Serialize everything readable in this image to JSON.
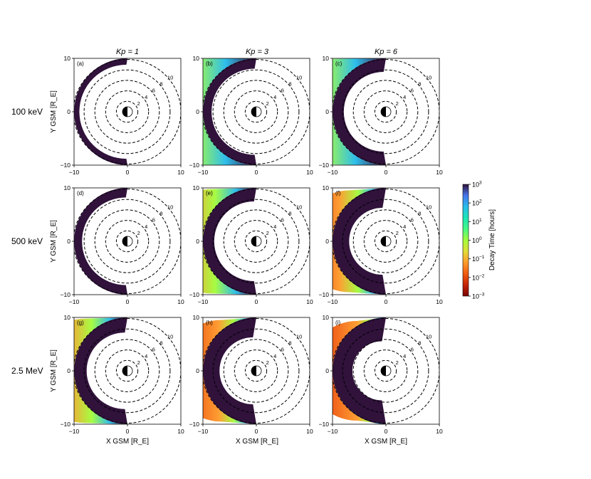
{
  "figure": {
    "column_titles": [
      "Kp = 1",
      "Kp = 3",
      "Kp = 6"
    ],
    "row_labels": [
      "100 keV",
      "500 keV",
      "2.5 MeV"
    ],
    "ylabel": "Y GSM [R_E]",
    "xlabel": "X GSM [R_E]",
    "panel_letters": [
      "(a)",
      "(b)",
      "(c)",
      "(d)",
      "(e)",
      "(f)",
      "(g)",
      "(h)",
      "(i)"
    ],
    "tick_labels": {
      "min": "−10",
      "zero": "0",
      "max": "10"
    },
    "colors": {
      "decay_max": "#30123b",
      "decay_mid": "#28bceb",
      "decay_fast": "#7a0403",
      "contour": "#000000",
      "earth_dark": "#000000",
      "earth_light": "#ffffff"
    }
  },
  "colorbar": {
    "label": "Decay Time [hours]",
    "colormap": "turbo-reversed",
    "scale": "log",
    "range": [
      0.001,
      1000
    ],
    "ticks": [
      {
        "base": "10",
        "exp": "3"
      },
      {
        "base": "10",
        "exp": "2"
      },
      {
        "base": "10",
        "exp": "1"
      },
      {
        "base": "10",
        "exp": "0"
      },
      {
        "base": "10",
        "exp": "−1"
      },
      {
        "base": "10",
        "exp": "−2"
      },
      {
        "base": "10",
        "exp": "−3"
      }
    ]
  },
  "chart_data": [
    {
      "panel": "(a)",
      "type": "heatmap",
      "energy": "100 keV",
      "kp": 1,
      "xlim": [
        -10,
        10
      ],
      "ylim": [
        -10,
        10
      ],
      "inner_edge_x": -8.4,
      "fast_decay_width": 0.0,
      "mid_decay_width": 0.0
    },
    {
      "panel": "(b)",
      "type": "heatmap",
      "energy": "100 keV",
      "kp": 3,
      "xlim": [
        -10,
        10
      ],
      "ylim": [
        -10,
        10
      ],
      "inner_edge_x": -7.4,
      "fast_decay_width": 0.0,
      "mid_decay_width": 0.3
    },
    {
      "panel": "(c)",
      "type": "heatmap",
      "energy": "100 keV",
      "kp": 6,
      "xlim": [
        -10,
        10
      ],
      "ylim": [
        -10,
        10
      ],
      "inner_edge_x": -6.6,
      "fast_decay_width": 0.0,
      "mid_decay_width": 0.5
    },
    {
      "panel": "(d)",
      "type": "heatmap",
      "energy": "500 keV",
      "kp": 1,
      "xlim": [
        -10,
        10
      ],
      "ylim": [
        -10,
        10
      ],
      "inner_edge_x": -7.6,
      "fast_decay_width": 0.0,
      "mid_decay_width": 0.0
    },
    {
      "panel": "(e)",
      "type": "heatmap",
      "energy": "500 keV",
      "kp": 3,
      "xlim": [
        -10,
        10
      ],
      "ylim": [
        -10,
        10
      ],
      "inner_edge_x": -6.6,
      "fast_decay_width": 0.4,
      "mid_decay_width": 1.0
    },
    {
      "panel": "(f)",
      "type": "heatmap",
      "energy": "500 keV",
      "kp": 6,
      "xlim": [
        -10,
        10
      ],
      "ylim": [
        -10,
        10
      ],
      "inner_edge_x": -5.0,
      "fast_decay_width": 1.4,
      "mid_decay_width": 1.6
    },
    {
      "panel": "(g)",
      "type": "heatmap",
      "energy": "2.5 MeV",
      "kp": 1,
      "xlim": [
        -10,
        10
      ],
      "ylim": [
        -10,
        10
      ],
      "inner_edge_x": -6.2,
      "fast_decay_width": 0.6,
      "mid_decay_width": 1.0
    },
    {
      "panel": "(h)",
      "type": "heatmap",
      "energy": "2.5 MeV",
      "kp": 3,
      "xlim": [
        -10,
        10
      ],
      "ylim": [
        -10,
        10
      ],
      "inner_edge_x": -5.0,
      "fast_decay_width": 1.8,
      "mid_decay_width": 1.4
    },
    {
      "panel": "(i)",
      "type": "heatmap",
      "energy": "2.5 MeV",
      "kp": 6,
      "xlim": [
        -10,
        10
      ],
      "ylim": [
        -10,
        10
      ],
      "inner_edge_x": -4.0,
      "fast_decay_width": 2.8,
      "mid_decay_width": 1.6
    },
    {
      "type": "line",
      "name": "L-shell contours",
      "radii": [
        2,
        4,
        6,
        8,
        10
      ],
      "labels": [
        "2",
        "4",
        "6",
        "8",
        "10"
      ]
    }
  ]
}
